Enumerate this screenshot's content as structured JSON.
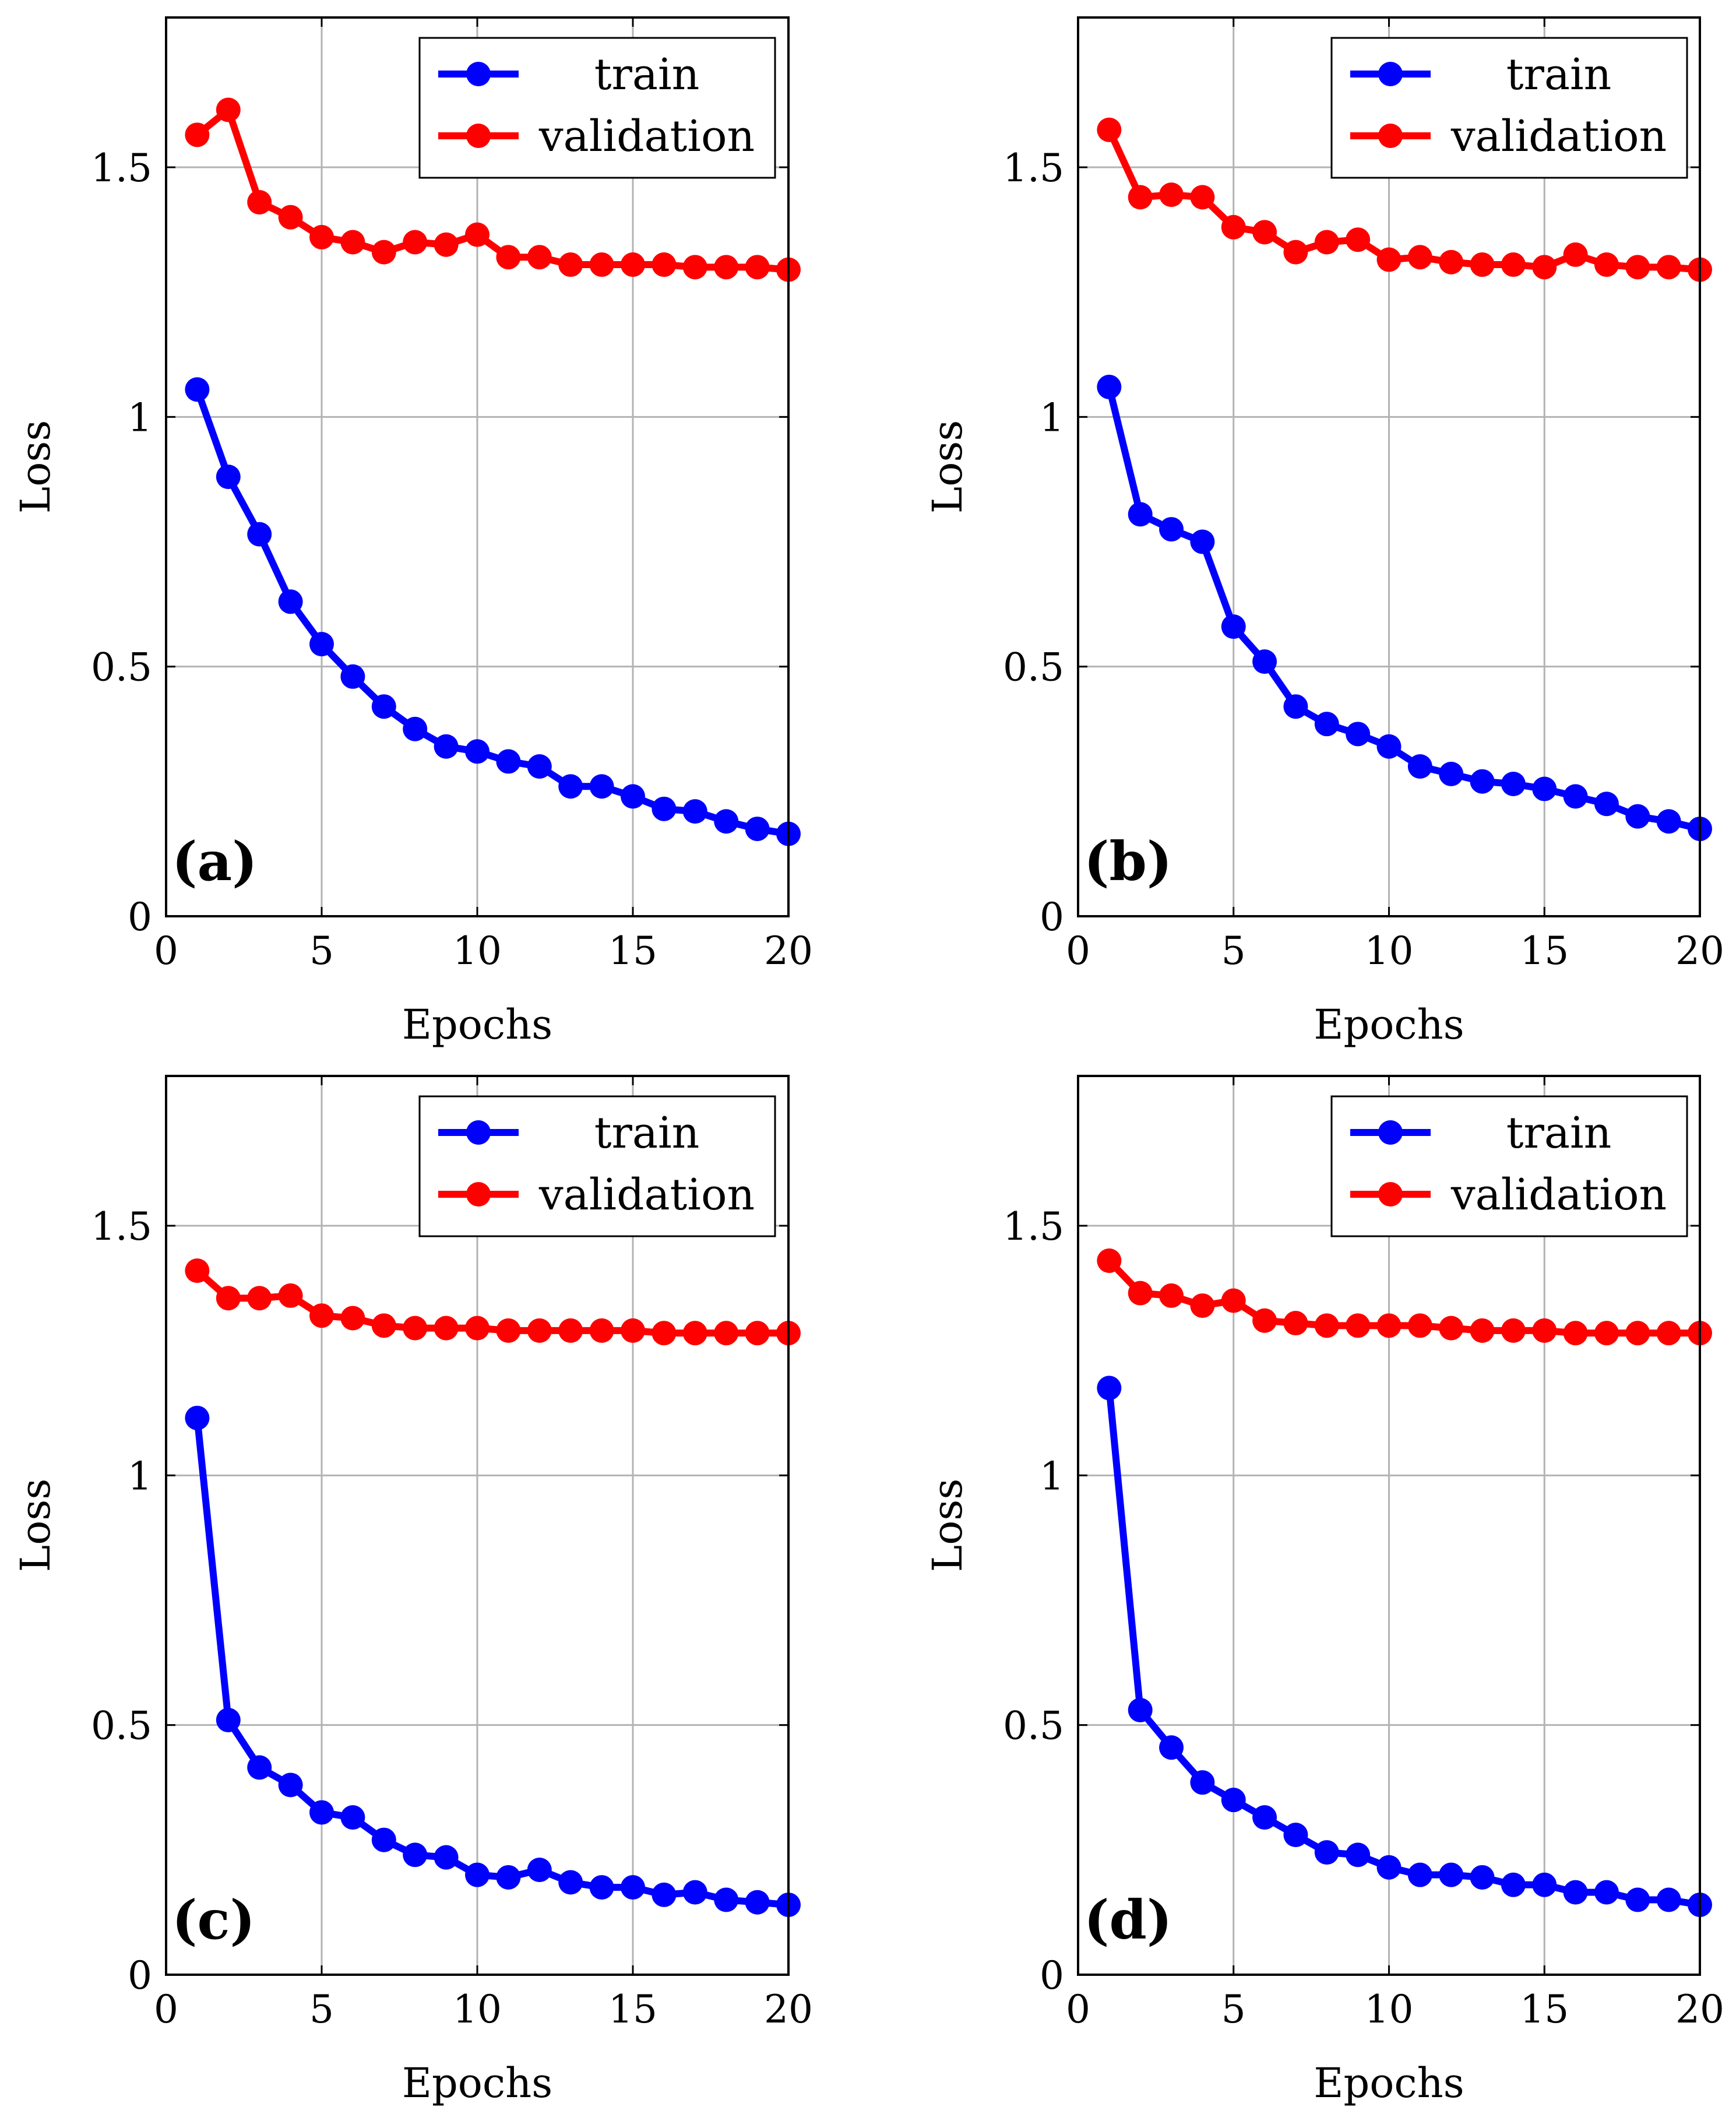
{
  "colors": {
    "train": "#0000ff",
    "validation": "#ff0000",
    "grid": "#b3b3b3",
    "axis": "#000000"
  },
  "chart_data": [
    {
      "type": "line",
      "panel_label": "(a)",
      "xlabel": "Epochs",
      "ylabel": "Loss",
      "xlim": [
        0,
        20
      ],
      "ylim": [
        0,
        1.8
      ],
      "xticks": [
        0,
        5,
        10,
        15,
        20
      ],
      "yticks": [
        0,
        0.5,
        1,
        1.5
      ],
      "xtick_labels": [
        "0",
        "5",
        "10",
        "15",
        "20"
      ],
      "ytick_labels": [
        "0",
        "0.5",
        "1",
        "1.5"
      ],
      "grid": true,
      "legend_position": "top-right",
      "x": [
        1,
        2,
        3,
        4,
        5,
        6,
        7,
        8,
        9,
        10,
        11,
        12,
        13,
        14,
        15,
        16,
        17,
        18,
        19,
        20
      ],
      "series": [
        {
          "name": "train",
          "color": "#0000ff",
          "values": [
            1.055,
            0.88,
            0.765,
            0.63,
            0.545,
            0.48,
            0.42,
            0.375,
            0.34,
            0.33,
            0.31,
            0.3,
            0.26,
            0.26,
            0.24,
            0.215,
            0.21,
            0.19,
            0.175,
            0.165
          ]
        },
        {
          "name": "validation",
          "color": "#ff0000",
          "values": [
            1.565,
            1.615,
            1.43,
            1.4,
            1.36,
            1.35,
            1.33,
            1.35,
            1.345,
            1.365,
            1.32,
            1.32,
            1.305,
            1.305,
            1.305,
            1.305,
            1.3,
            1.3,
            1.3,
            1.295
          ]
        }
      ]
    },
    {
      "type": "line",
      "panel_label": "(b)",
      "xlabel": "Epochs",
      "ylabel": "Loss",
      "xlim": [
        0,
        20
      ],
      "ylim": [
        0,
        1.8
      ],
      "xticks": [
        0,
        5,
        10,
        15,
        20
      ],
      "yticks": [
        0,
        0.5,
        1,
        1.5
      ],
      "xtick_labels": [
        "0",
        "5",
        "10",
        "15",
        "20"
      ],
      "ytick_labels": [
        "0",
        "0.5",
        "1",
        "1.5"
      ],
      "grid": true,
      "legend_position": "top-right",
      "x": [
        1,
        2,
        3,
        4,
        5,
        6,
        7,
        8,
        9,
        10,
        11,
        12,
        13,
        14,
        15,
        16,
        17,
        18,
        19,
        20
      ],
      "series": [
        {
          "name": "train",
          "color": "#0000ff",
          "values": [
            1.06,
            0.805,
            0.775,
            0.75,
            0.58,
            0.51,
            0.42,
            0.385,
            0.365,
            0.34,
            0.3,
            0.285,
            0.27,
            0.265,
            0.255,
            0.24,
            0.225,
            0.2,
            0.19,
            0.175
          ]
        },
        {
          "name": "validation",
          "color": "#ff0000",
          "values": [
            1.575,
            1.44,
            1.445,
            1.44,
            1.38,
            1.37,
            1.33,
            1.35,
            1.355,
            1.315,
            1.32,
            1.31,
            1.305,
            1.305,
            1.3,
            1.325,
            1.305,
            1.3,
            1.3,
            1.295
          ]
        }
      ]
    },
    {
      "type": "line",
      "panel_label": "(c)",
      "xlabel": "Epochs",
      "ylabel": "Loss",
      "xlim": [
        0,
        20
      ],
      "ylim": [
        0,
        1.8
      ],
      "xticks": [
        0,
        5,
        10,
        15,
        20
      ],
      "yticks": [
        0,
        0.5,
        1,
        1.5
      ],
      "xtick_labels": [
        "0",
        "5",
        "10",
        "15",
        "20"
      ],
      "ytick_labels": [
        "0",
        "0.5",
        "1",
        "1.5"
      ],
      "grid": true,
      "legend_position": "top-right",
      "x": [
        1,
        2,
        3,
        4,
        5,
        6,
        7,
        8,
        9,
        10,
        11,
        12,
        13,
        14,
        15,
        16,
        17,
        18,
        19,
        20
      ],
      "series": [
        {
          "name": "train",
          "color": "#0000ff",
          "values": [
            1.115,
            0.51,
            0.415,
            0.38,
            0.325,
            0.315,
            0.27,
            0.24,
            0.235,
            0.2,
            0.195,
            0.21,
            0.185,
            0.175,
            0.175,
            0.16,
            0.165,
            0.15,
            0.145,
            0.14
          ]
        },
        {
          "name": "validation",
          "color": "#ff0000",
          "values": [
            1.41,
            1.355,
            1.355,
            1.36,
            1.32,
            1.315,
            1.3,
            1.295,
            1.295,
            1.295,
            1.29,
            1.29,
            1.29,
            1.29,
            1.29,
            1.285,
            1.285,
            1.285,
            1.285,
            1.285
          ]
        }
      ]
    },
    {
      "type": "line",
      "panel_label": "(d)",
      "xlabel": "Epochs",
      "ylabel": "Loss",
      "xlim": [
        0,
        20
      ],
      "ylim": [
        0,
        1.8
      ],
      "xticks": [
        0,
        5,
        10,
        15,
        20
      ],
      "yticks": [
        0,
        0.5,
        1,
        1.5
      ],
      "xtick_labels": [
        "0",
        "5",
        "10",
        "15",
        "20"
      ],
      "ytick_labels": [
        "0",
        "0.5",
        "1",
        "1.5"
      ],
      "grid": true,
      "legend_position": "top-right",
      "x": [
        1,
        2,
        3,
        4,
        5,
        6,
        7,
        8,
        9,
        10,
        11,
        12,
        13,
        14,
        15,
        16,
        17,
        18,
        19,
        20
      ],
      "series": [
        {
          "name": "train",
          "color": "#0000ff",
          "values": [
            1.175,
            0.53,
            0.455,
            0.385,
            0.35,
            0.315,
            0.28,
            0.245,
            0.24,
            0.215,
            0.2,
            0.2,
            0.195,
            0.18,
            0.18,
            0.165,
            0.165,
            0.15,
            0.15,
            0.14
          ]
        },
        {
          "name": "validation",
          "color": "#ff0000",
          "values": [
            1.43,
            1.365,
            1.36,
            1.34,
            1.35,
            1.31,
            1.305,
            1.3,
            1.3,
            1.3,
            1.3,
            1.295,
            1.29,
            1.29,
            1.29,
            1.285,
            1.285,
            1.285,
            1.285,
            1.285
          ]
        }
      ]
    }
  ]
}
